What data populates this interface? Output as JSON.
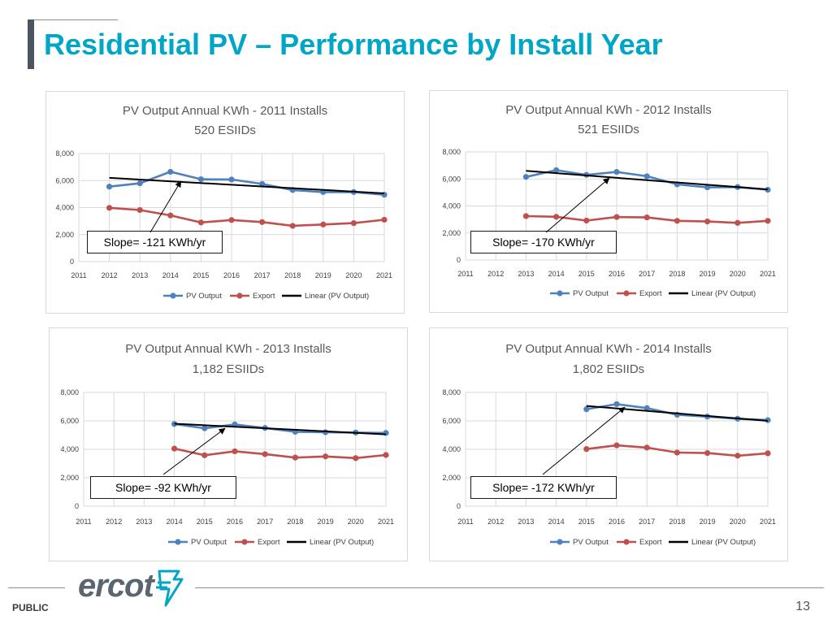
{
  "slide": {
    "title": "Residential PV – Performance by Install Year",
    "footer_label": "PUBLIC",
    "page_number": "13",
    "logo_text": "ercot",
    "colors": {
      "title": "#00a6c5",
      "pv": "#4f81bd",
      "export": "#c0504d",
      "trend": "#000000"
    }
  },
  "chart_data": [
    {
      "type": "line",
      "title": "PV Output Annual KWh - 2011 Installs",
      "subtitle": "520 ESIIDs",
      "x": [
        2011,
        2012,
        2013,
        2014,
        2015,
        2016,
        2017,
        2018,
        2019,
        2020,
        2021
      ],
      "x_tick_labels": [
        "2011",
        "2012",
        "2013",
        "2014",
        "2015",
        "2016",
        "2017",
        "2018",
        "2019",
        "2020",
        "2021"
      ],
      "ylim": [
        0,
        8000
      ],
      "y_tick_labels": [
        "0",
        "2,000",
        "4,000",
        "6,000",
        "8,000"
      ],
      "y_ticks": [
        0,
        2000,
        4000,
        6000,
        8000
      ],
      "series": [
        {
          "name": "PV Output",
          "x": [
            2012,
            2013,
            2014,
            2015,
            2016,
            2017,
            2018,
            2019,
            2020,
            2021
          ],
          "values": [
            5550,
            5800,
            6650,
            6100,
            6080,
            5750,
            5300,
            5150,
            5150,
            4950
          ]
        },
        {
          "name": "Export",
          "x": [
            2012,
            2013,
            2014,
            2015,
            2016,
            2017,
            2018,
            2019,
            2020,
            2021
          ],
          "values": [
            3980,
            3820,
            3420,
            2900,
            3080,
            2930,
            2650,
            2750,
            2850,
            3100
          ]
        },
        {
          "name": "Linear (PV Output)",
          "x": [
            2012,
            2021
          ],
          "values": [
            6200,
            5050
          ]
        }
      ],
      "legend": [
        "PV Output",
        "Export",
        "Linear (PV Output)"
      ],
      "legend_position": "bottom",
      "annotation": "Slope= -121 KWh/yr",
      "annotation_target": [
        2014,
        6000
      ]
    },
    {
      "type": "line",
      "title": "PV Output Annual KWh - 2012 Installs",
      "subtitle": "521 ESIIDs",
      "x": [
        2011,
        2012,
        2013,
        2014,
        2015,
        2016,
        2017,
        2018,
        2019,
        2020,
        2021
      ],
      "x_tick_labels": [
        "2011",
        "2012",
        "2013",
        "2014",
        "2015",
        "2016",
        "2017",
        "2018",
        "2019",
        "2020",
        "2021"
      ],
      "ylim": [
        0,
        8000
      ],
      "y_tick_labels": [
        "0",
        "2,000",
        "4,000",
        "6,000",
        "8,000"
      ],
      "y_ticks": [
        0,
        2000,
        4000,
        6000,
        8000
      ],
      "series": [
        {
          "name": "PV Output",
          "x": [
            2013,
            2014,
            2015,
            2016,
            2017,
            2018,
            2019,
            2020,
            2021
          ],
          "values": [
            6150,
            6650,
            6300,
            6520,
            6200,
            5600,
            5380,
            5400,
            5200
          ]
        },
        {
          "name": "Export",
          "x": [
            2013,
            2014,
            2015,
            2016,
            2017,
            2018,
            2019,
            2020,
            2021
          ],
          "values": [
            3250,
            3200,
            2920,
            3180,
            3150,
            2900,
            2850,
            2750,
            2900
          ]
        },
        {
          "name": "Linear (PV Output)",
          "x": [
            2013,
            2021
          ],
          "values": [
            6600,
            5230
          ]
        }
      ],
      "legend": [
        "PV Output",
        "Export",
        "Linear (PV Output)"
      ],
      "legend_position": "bottom",
      "annotation": "Slope= -170 KWh/yr",
      "annotation_target": [
        2016,
        6000
      ]
    },
    {
      "type": "line",
      "title": "PV Output Annual KWh - 2013 Installs",
      "subtitle": "1,182 ESIIDs",
      "x": [
        2011,
        2012,
        2013,
        2014,
        2015,
        2016,
        2017,
        2018,
        2019,
        2020,
        2021
      ],
      "x_tick_labels": [
        "2011",
        "2012",
        "2013",
        "2014",
        "2015",
        "2016",
        "2017",
        "2018",
        "2019",
        "2020",
        "2021"
      ],
      "ylim": [
        0,
        8000
      ],
      "y_tick_labels": [
        "0",
        "2,000",
        "4,000",
        "6,000",
        "8,000"
      ],
      "y_ticks": [
        0,
        2000,
        4000,
        6000,
        8000
      ],
      "series": [
        {
          "name": "PV Output",
          "x": [
            2014,
            2015,
            2016,
            2017,
            2018,
            2019,
            2020,
            2021
          ],
          "values": [
            5780,
            5480,
            5750,
            5500,
            5230,
            5200,
            5180,
            5150
          ]
        },
        {
          "name": "Export",
          "x": [
            2014,
            2015,
            2016,
            2017,
            2018,
            2019,
            2020,
            2021
          ],
          "values": [
            4050,
            3580,
            3860,
            3660,
            3420,
            3500,
            3380,
            3600
          ]
        },
        {
          "name": "Linear (PV Output)",
          "x": [
            2014,
            2021
          ],
          "values": [
            5800,
            5050
          ]
        }
      ],
      "legend": [
        "PV Output",
        "Export",
        "Linear (PV Output)"
      ],
      "legend_position": "bottom",
      "annotation": "Slope= -92 KWh/yr",
      "annotation_target": [
        2016,
        5500
      ]
    },
    {
      "type": "line",
      "title": "PV Output Annual KWh - 2014 Installs",
      "subtitle": "1,802 ESIIDs",
      "x": [
        2011,
        2012,
        2013,
        2014,
        2015,
        2016,
        2017,
        2018,
        2019,
        2020,
        2021
      ],
      "x_tick_labels": [
        "2011",
        "2012",
        "2013",
        "2014",
        "2015",
        "2016",
        "2017",
        "2018",
        "2019",
        "2020",
        "2021"
      ],
      "ylim": [
        0,
        8000
      ],
      "y_tick_labels": [
        "0",
        "2,000",
        "4,000",
        "6,000",
        "8,000"
      ],
      "y_ticks": [
        0,
        2000,
        4000,
        6000,
        8000
      ],
      "series": [
        {
          "name": "PV Output",
          "x": [
            2015,
            2016,
            2017,
            2018,
            2019,
            2020,
            2021
          ],
          "values": [
            6820,
            7180,
            6900,
            6430,
            6300,
            6150,
            6050
          ]
        },
        {
          "name": "Export",
          "x": [
            2015,
            2016,
            2017,
            2018,
            2019,
            2020,
            2021
          ],
          "values": [
            4020,
            4280,
            4120,
            3770,
            3740,
            3550,
            3720
          ]
        },
        {
          "name": "Linear (PV Output)",
          "x": [
            2015,
            2021
          ],
          "values": [
            7050,
            6000
          ]
        }
      ],
      "legend": [
        "PV Output",
        "Export",
        "Linear (PV Output)"
      ],
      "legend_position": "bottom",
      "annotation": "Slope= -172 KWh/yr",
      "annotation_target": [
        2016,
        6950
      ]
    }
  ]
}
